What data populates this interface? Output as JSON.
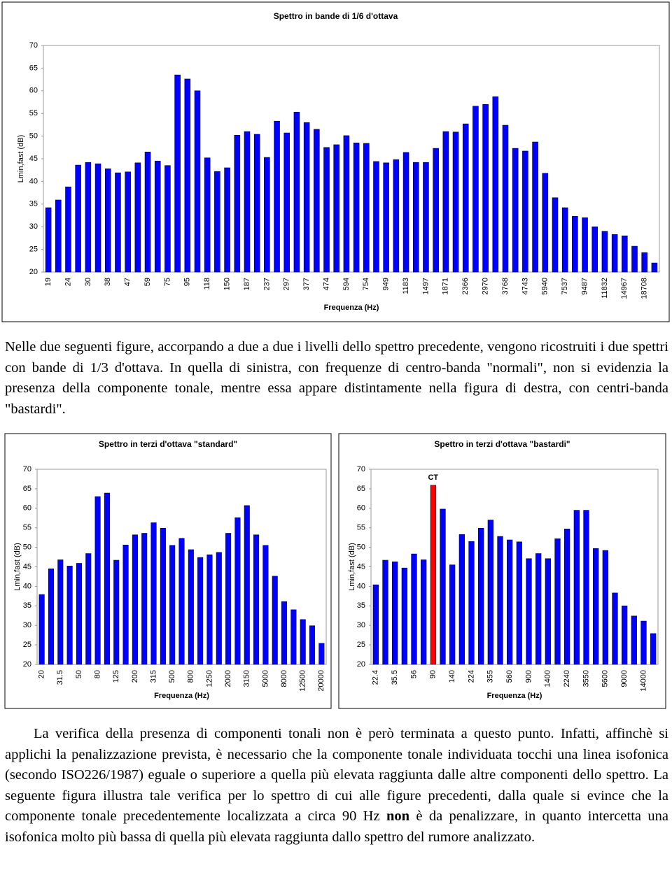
{
  "chart_data": [
    {
      "type": "bar",
      "title": "Spettro in bande di 1/6 d'ottava",
      "x_label": "Frequenza (Hz)",
      "y_label": "Lmin,fast (dB)",
      "categories": [
        "19",
        null,
        "24",
        null,
        "30",
        null,
        "38",
        null,
        "47",
        null,
        "59",
        null,
        "75",
        null,
        "95",
        null,
        "118",
        null,
        "150",
        null,
        "187",
        null,
        "237",
        null,
        "297",
        null,
        "377",
        null,
        "474",
        null,
        "594",
        null,
        "754",
        null,
        "949",
        null,
        "1183",
        null,
        "1497",
        null,
        "1871",
        null,
        "2366",
        null,
        "2970",
        null,
        "3768",
        null,
        "4743",
        null,
        "5940",
        null,
        "7537",
        null,
        "9487",
        null,
        "11832",
        null,
        "14967",
        null,
        "18708",
        null
      ],
      "values": [
        34.2,
        35.9,
        38.8,
        43.6,
        44.2,
        43.9,
        42.8,
        41.9,
        42.1,
        44.1,
        46.5,
        44.5,
        43.5,
        63.5,
        62.6,
        60.0,
        45.2,
        42.2,
        43.0,
        50.2,
        51.0,
        50.4,
        45.3,
        53.3,
        50.7,
        55.3,
        53.0,
        51.5,
        47.5,
        48.1,
        50.1,
        48.5,
        48.4,
        44.4,
        44.1,
        44.8,
        46.4,
        44.2,
        44.2,
        47.3,
        51.0,
        50.9,
        52.7,
        56.6,
        57.0,
        58.7,
        52.4,
        47.3,
        46.7,
        48.7,
        41.8,
        36.4,
        34.2,
        32.3,
        32.0,
        30.0,
        29.0,
        28.3,
        28.0,
        25.7,
        24.3,
        22.0
      ],
      "color": "#0000ff",
      "ylim": [
        20,
        70
      ],
      "yticks": [
        20,
        25,
        30,
        35,
        40,
        45,
        50,
        55,
        60,
        65,
        70
      ],
      "grid": false
    },
    {
      "type": "bar",
      "title": "Spettro in terzi d'ottava \"standard\"",
      "x_label": "Frequenza (Hz)",
      "y_label": "Lmin,fast (dB)",
      "categories": [
        "20",
        null,
        "31.5",
        null,
        "50",
        null,
        "80",
        null,
        "125",
        null,
        "200",
        null,
        "315",
        null,
        "500",
        null,
        "800",
        null,
        "1250",
        null,
        "2000",
        null,
        "3150",
        null,
        "5000",
        null,
        "8000",
        null,
        "12500",
        null,
        "20000"
      ],
      "values": [
        37.9,
        44.5,
        46.8,
        45.2,
        45.9,
        48.4,
        63.0,
        63.9,
        46.7,
        50.6,
        53.2,
        53.6,
        56.3,
        54.9,
        50.5,
        52.3,
        49.4,
        47.4,
        48.1,
        48.7,
        53.6,
        57.6,
        60.7,
        53.2,
        50.5,
        42.6,
        36.1,
        34.0,
        31.5,
        29.9,
        25.4
      ],
      "color": "#0000ff",
      "ylim": [
        20,
        70
      ],
      "yticks": [
        20,
        25,
        30,
        35,
        40,
        45,
        50,
        55,
        60,
        65,
        70
      ],
      "grid": false
    },
    {
      "type": "bar",
      "title": "Spettro in terzi d'ottava \"bastardi\"",
      "x_label": "Frequenza (Hz)",
      "y_label": "Lmin,fast (dB)",
      "categories": [
        "22.4",
        null,
        "35.5",
        null,
        "56",
        null,
        "90",
        null,
        "140",
        null,
        "224",
        null,
        "355",
        null,
        "560",
        null,
        "900",
        null,
        "1400",
        null,
        "2240",
        null,
        "3550",
        null,
        "5600",
        null,
        "9000",
        null,
        "14000",
        null
      ],
      "values": [
        40.4,
        46.7,
        46.3,
        44.7,
        48.3,
        46.8,
        65.9,
        59.8,
        45.5,
        53.3,
        51.5,
        54.9,
        57.0,
        52.8,
        51.9,
        51.4,
        47.1,
        48.4,
        47.1,
        52.2,
        54.7,
        59.5,
        59.5,
        49.7,
        49.2,
        38.3,
        35.0,
        32.4,
        31.1,
        27.9
      ],
      "colors": [
        "#0000ff",
        "#0000ff",
        "#0000ff",
        "#0000ff",
        "#0000ff",
        "#0000ff",
        "#ff0000",
        "#0000ff",
        "#0000ff",
        "#0000ff",
        "#0000ff",
        "#0000ff",
        "#0000ff",
        "#0000ff",
        "#0000ff",
        "#0000ff",
        "#0000ff",
        "#0000ff",
        "#0000ff",
        "#0000ff",
        "#0000ff",
        "#0000ff",
        "#0000ff",
        "#0000ff",
        "#0000ff",
        "#0000ff",
        "#0000ff",
        "#0000ff",
        "#0000ff",
        "#0000ff"
      ],
      "annotations": [
        {
          "text": "CT",
          "x": "90"
        }
      ],
      "ylim": [
        20,
        70
      ],
      "yticks": [
        20,
        25,
        30,
        35,
        40,
        45,
        50,
        55,
        60,
        65,
        70
      ],
      "grid": false
    }
  ],
  "paragraphs": [
    [
      "Nelle due seguenti figure, accorpando a due a due i livelli dello spettro precedente, vengono ricostruiti i due spettri con bande di 1/3 d'ottava. In quella di sinistra, con frequenze di centro-banda \"normali\", non si evidenzia la presenza della componente tonale, mentre essa appare distintamente nella figura di destra, con centri-banda \"bastardi\"."
    ],
    [
      "La verifica della presenza di componenti tonali non è però terminata a questo punto. Infatti, affinchè si applichi la penalizzazione prevista, è necessario che la componente tonale individuata tocchi una linea isofonica (secondo ISO226/1987) eguale o superiore a quella più elevata raggiunta dalle altre componenti dello spettro. La seguente figura illustra tale verifica per lo spettro di cui alle figure precedenti, dalla quale si evince che la componente tonale precedentemente localizzata a circa 90 Hz ",
      "non",
      " è da penalizzare, in quanto intercetta una isofonica molto più bassa di quella più elevata raggiunta dallo spettro del rumore analizzato."
    ]
  ]
}
